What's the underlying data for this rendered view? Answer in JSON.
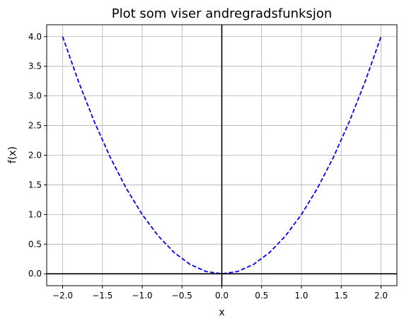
{
  "chart_data": {
    "type": "line",
    "title": "Plot som viser andregradsfunksjon",
    "xlabel": "x",
    "ylabel": "f(x)",
    "xlim": [
      -2.2,
      2.2
    ],
    "ylim": [
      -0.2,
      4.2
    ],
    "grid": true,
    "x_ticks": [
      -2.0,
      -1.5,
      -1.0,
      -0.5,
      0.0,
      0.5,
      1.0,
      1.5,
      2.0
    ],
    "x_tick_labels": [
      "−2.0",
      "−1.5",
      "−1.0",
      "−0.5",
      "0.0",
      "0.5",
      "1.0",
      "1.5",
      "2.0"
    ],
    "y_ticks": [
      0.0,
      0.5,
      1.0,
      1.5,
      2.0,
      2.5,
      3.0,
      3.5,
      4.0
    ],
    "y_tick_labels": [
      "0.0",
      "0.5",
      "1.0",
      "1.5",
      "2.0",
      "2.5",
      "3.0",
      "3.5",
      "4.0"
    ],
    "series": [
      {
        "x": [
          -2.0,
          -1.8,
          -1.6,
          -1.4,
          -1.2,
          -1.0,
          -0.8,
          -0.6,
          -0.4,
          -0.2,
          0.0,
          0.2,
          0.4,
          0.6,
          0.8,
          1.0,
          1.2,
          1.4,
          1.6,
          1.8,
          2.0
        ],
        "y": [
          4.0,
          3.24,
          2.56,
          1.96,
          1.44,
          1.0,
          0.64,
          0.36,
          0.16,
          0.04,
          0.0,
          0.04,
          0.16,
          0.36,
          0.64,
          1.0,
          1.44,
          1.96,
          2.56,
          3.24,
          4.0
        ],
        "color": "#0000ff",
        "line_style": "dashed"
      }
    ],
    "reference_lines": {
      "y": 0.0,
      "x": 0.0,
      "color": "#000000"
    },
    "colors": {
      "grid": "#b0b0b0",
      "axes": "#000000",
      "background": "#ffffff"
    }
  }
}
